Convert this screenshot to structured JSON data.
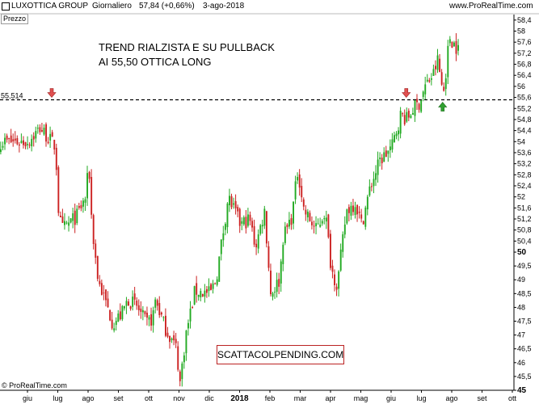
{
  "header": {
    "symbol": "LUXOTTICA GROUP",
    "timeframe": "Giornaliero",
    "last": "57,84 (+0,66%)",
    "date": "3-ago-2018",
    "site": "www.ProRealTime.com"
  },
  "panel_label": "Prezzo",
  "annotation": {
    "line1": "TREND RIALZISTA E SU PULLBACK",
    "line2": "AI 55,50 OTTICA LONG"
  },
  "stamp": "SCATTACOLPENDING.COM",
  "copyright": "© ProRealTime.com",
  "colors": {
    "up": "#22aa22",
    "down": "#cc2222",
    "level": "#000000",
    "arrow_down": "#e05050",
    "arrow_up": "#30a030"
  },
  "chart_data": {
    "type": "candlestick",
    "ylim": [
      45.0,
      58.6
    ],
    "y_ticks": [
      "58,4",
      "58",
      "57,6",
      "57,2",
      "56,8",
      "56,4",
      "56",
      "55,6",
      "55,2",
      "54,8",
      "54,4",
      "54",
      "53,6",
      "53,2",
      "52,8",
      "52,4",
      "52",
      "51,6",
      "51,2",
      "50,8",
      "50,4",
      "50",
      "49,5",
      "49",
      "48,5",
      "48",
      "47,5",
      "47",
      "46,5",
      "46",
      "45,5",
      "45"
    ],
    "y_tick_values": [
      58.4,
      58,
      57.6,
      57.2,
      56.8,
      56.4,
      56,
      55.6,
      55.2,
      54.8,
      54.4,
      54,
      53.6,
      53.2,
      52.8,
      52.4,
      52,
      51.6,
      51.2,
      50.8,
      50.4,
      50,
      49.5,
      49,
      48.5,
      48,
      47.5,
      47,
      46.5,
      46,
      45.5,
      45
    ],
    "y_bold_ticks": [
      "50",
      "45"
    ],
    "x_labels": [
      "giu",
      "lug",
      "ago",
      "set",
      "ott",
      "nov",
      "dic",
      "2018",
      "feb",
      "mar",
      "apr",
      "mag",
      "giu",
      "lug",
      "ago",
      "set",
      "ott"
    ],
    "x_bold_labels": [
      "2018"
    ],
    "level": {
      "value": 55.514,
      "label": "55,514",
      "style": "dashed"
    },
    "markers": [
      {
        "type": "down-arrow",
        "month_index": 0.8,
        "value": 55.514
      },
      {
        "type": "down-arrow",
        "month_index": 12.5,
        "value": 55.514
      },
      {
        "type": "up-arrow",
        "month_index": 13.7,
        "value": 55.514
      }
    ],
    "path": [
      [
        0,
        54.0
      ],
      [
        0.4,
        54.5
      ],
      [
        0.9,
        53.8
      ],
      [
        1.0,
        51.5
      ],
      [
        1.1,
        50.8
      ],
      [
        1.6,
        51.3
      ],
      [
        1.9,
        52.0
      ],
      [
        2.0,
        53.2
      ],
      [
        2.1,
        51.0
      ],
      [
        2.3,
        49.0
      ],
      [
        2.8,
        47.4
      ],
      [
        3.1,
        47.8
      ],
      [
        3.3,
        48.3
      ],
      [
        3.6,
        48.0
      ],
      [
        3.9,
        47.4
      ],
      [
        4.1,
        47.6
      ],
      [
        4.2,
        48.3
      ],
      [
        4.5,
        47.3
      ],
      [
        4.9,
        46.5
      ],
      [
        5.0,
        45.2
      ],
      [
        5.2,
        47.0
      ],
      [
        5.5,
        48.6
      ],
      [
        6.0,
        48.5
      ],
      [
        6.2,
        49.0
      ],
      [
        6.4,
        50.5
      ],
      [
        6.6,
        52.0
      ],
      [
        7.0,
        51.0
      ],
      [
        7.3,
        51.2
      ],
      [
        7.5,
        50.2
      ],
      [
        7.8,
        51.5
      ],
      [
        8.0,
        48.5
      ],
      [
        8.3,
        49.0
      ],
      [
        8.4,
        50.5
      ],
      [
        8.7,
        51.3
      ],
      [
        8.9,
        53.0
      ],
      [
        9.1,
        51.5
      ],
      [
        9.5,
        50.8
      ],
      [
        9.8,
        51.5
      ],
      [
        10.0,
        49.4
      ],
      [
        10.2,
        48.8
      ],
      [
        10.5,
        51.5
      ],
      [
        10.8,
        51.8
      ],
      [
        11.0,
        51.0
      ],
      [
        11.3,
        52.4
      ],
      [
        11.6,
        53.3
      ],
      [
        12.0,
        53.8
      ],
      [
        12.3,
        55.0
      ],
      [
        12.5,
        54.8
      ],
      [
        12.7,
        55.2
      ],
      [
        12.9,
        55.4
      ],
      [
        13.1,
        56.0
      ],
      [
        13.4,
        56.5
      ],
      [
        13.5,
        57.0
      ],
      [
        13.7,
        55.7
      ],
      [
        13.9,
        57.8
      ],
      [
        14.2,
        57.3
      ]
    ]
  }
}
